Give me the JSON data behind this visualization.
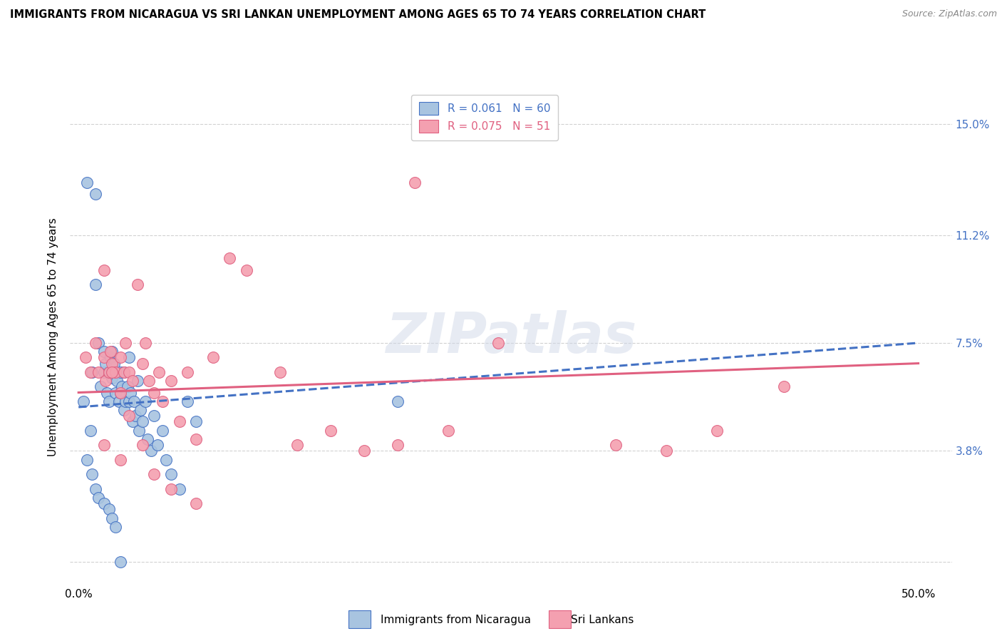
{
  "title": "IMMIGRANTS FROM NICARAGUA VS SRI LANKAN UNEMPLOYMENT AMONG AGES 65 TO 74 YEARS CORRELATION CHART",
  "source": "Source: ZipAtlas.com",
  "ylabel": "Unemployment Among Ages 65 to 74 years",
  "yticks": [
    0.0,
    0.038,
    0.075,
    0.112,
    0.15
  ],
  "ytick_labels": [
    "",
    "3.8%",
    "7.5%",
    "11.2%",
    "15.0%"
  ],
  "xticks": [
    0.0,
    0.1,
    0.2,
    0.3,
    0.4,
    0.5
  ],
  "xtick_labels_show": [
    "0.0%",
    "",
    "",
    "",
    "",
    "50.0%"
  ],
  "xlim": [
    -0.005,
    0.52
  ],
  "ylim": [
    -0.008,
    0.162
  ],
  "legend_r1": "R = 0.061",
  "legend_n1": "N = 60",
  "legend_r2": "R = 0.075",
  "legend_n2": "N = 51",
  "color_blue": "#a8c4e0",
  "color_pink": "#f4a0b0",
  "trendline_blue_color": "#4472c4",
  "trendline_pink_color": "#e06080",
  "background": "#ffffff",
  "grid_color": "#cccccc",
  "watermark": "ZIPatlas",
  "blue_points_x": [
    0.003,
    0.005,
    0.007,
    0.008,
    0.01,
    0.01,
    0.012,
    0.013,
    0.015,
    0.015,
    0.016,
    0.017,
    0.018,
    0.018,
    0.019,
    0.02,
    0.02,
    0.021,
    0.022,
    0.022,
    0.023,
    0.024,
    0.025,
    0.025,
    0.026,
    0.027,
    0.027,
    0.028,
    0.029,
    0.03,
    0.03,
    0.031,
    0.032,
    0.033,
    0.034,
    0.035,
    0.036,
    0.037,
    0.038,
    0.04,
    0.041,
    0.043,
    0.045,
    0.047,
    0.05,
    0.052,
    0.055,
    0.06,
    0.065,
    0.07,
    0.005,
    0.008,
    0.01,
    0.012,
    0.015,
    0.018,
    0.02,
    0.022,
    0.19,
    0.025
  ],
  "blue_points_y": [
    0.055,
    0.13,
    0.045,
    0.065,
    0.126,
    0.095,
    0.075,
    0.06,
    0.072,
    0.065,
    0.068,
    0.058,
    0.065,
    0.055,
    0.07,
    0.072,
    0.063,
    0.068,
    0.065,
    0.058,
    0.062,
    0.055,
    0.065,
    0.058,
    0.06,
    0.052,
    0.065,
    0.055,
    0.06,
    0.07,
    0.055,
    0.058,
    0.048,
    0.055,
    0.05,
    0.062,
    0.045,
    0.052,
    0.048,
    0.055,
    0.042,
    0.038,
    0.05,
    0.04,
    0.045,
    0.035,
    0.03,
    0.025,
    0.055,
    0.048,
    0.035,
    0.03,
    0.025,
    0.022,
    0.02,
    0.018,
    0.015,
    0.012,
    0.055,
    0.0
  ],
  "pink_points_x": [
    0.004,
    0.007,
    0.01,
    0.012,
    0.015,
    0.016,
    0.018,
    0.019,
    0.02,
    0.022,
    0.025,
    0.027,
    0.028,
    0.03,
    0.032,
    0.035,
    0.038,
    0.04,
    0.042,
    0.045,
    0.048,
    0.05,
    0.055,
    0.06,
    0.065,
    0.07,
    0.08,
    0.09,
    0.1,
    0.12,
    0.13,
    0.15,
    0.17,
    0.19,
    0.2,
    0.22,
    0.25,
    0.32,
    0.35,
    0.42,
    0.015,
    0.02,
    0.025,
    0.03,
    0.038,
    0.045,
    0.055,
    0.07,
    0.015,
    0.025,
    0.38
  ],
  "pink_points_y": [
    0.07,
    0.065,
    0.075,
    0.065,
    0.07,
    0.062,
    0.065,
    0.072,
    0.068,
    0.065,
    0.07,
    0.065,
    0.075,
    0.065,
    0.062,
    0.095,
    0.068,
    0.075,
    0.062,
    0.058,
    0.065,
    0.055,
    0.062,
    0.048,
    0.065,
    0.042,
    0.07,
    0.104,
    0.1,
    0.065,
    0.04,
    0.045,
    0.038,
    0.04,
    0.13,
    0.045,
    0.075,
    0.04,
    0.038,
    0.06,
    0.1,
    0.065,
    0.058,
    0.05,
    0.04,
    0.03,
    0.025,
    0.02,
    0.04,
    0.035,
    0.045
  ],
  "trendline_blue_x0": 0.0,
  "trendline_blue_x1": 0.5,
  "trendline_blue_y0": 0.053,
  "trendline_blue_y1": 0.075,
  "trendline_pink_x0": 0.0,
  "trendline_pink_x1": 0.5,
  "trendline_pink_y0": 0.058,
  "trendline_pink_y1": 0.068
}
